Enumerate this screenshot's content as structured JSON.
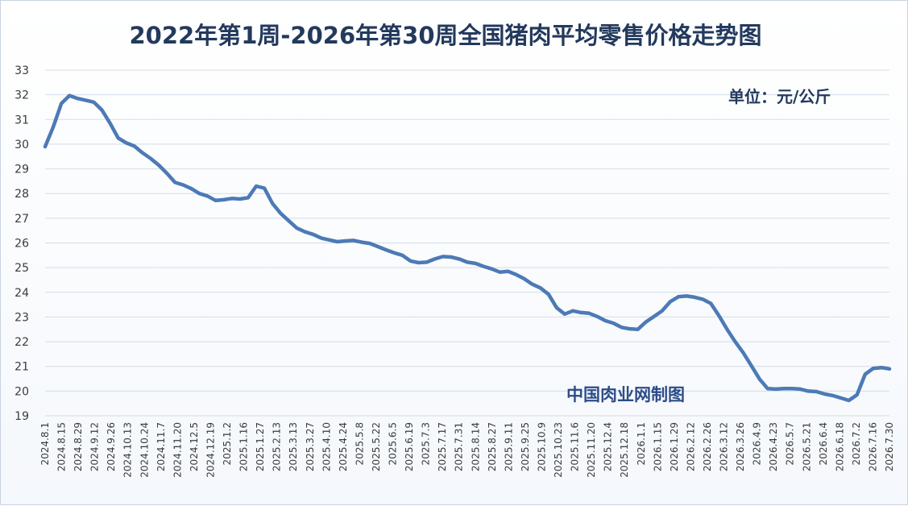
{
  "colors": {
    "line": "#4c7ab6",
    "grid": "#d5dde8",
    "title": "#23395d",
    "source": "#2c4c8a"
  },
  "chart_data": {
    "type": "line",
    "title": "2022年第1周-2026年第30周全国猪肉平均零售价格走势图",
    "unit": "单位：元/公斤",
    "source": "中国肉业网制图",
    "xlabel": "",
    "ylabel": "",
    "ylim": [
      19,
      33
    ],
    "yticks": [
      19,
      20,
      21,
      22,
      23,
      24,
      25,
      26,
      27,
      28,
      29,
      30,
      31,
      32,
      33
    ],
    "grid": true,
    "legend": "none",
    "x_tick_labels": [
      "2024.8.1",
      "2024.8.15",
      "2024.8.29",
      "2024.9.12",
      "2024.9.26",
      "2024.10.13",
      "2024.10.24",
      "2024.11.7",
      "2024.11.20",
      "2024.12.5",
      "2024.12.19",
      "2025.1.2",
      "2025.1.16",
      "2025.1.27",
      "2025.2.13",
      "2025.3.13",
      "2025.3.27",
      "2025.4.10",
      "2025.4.24",
      "2025.5.8",
      "2025.5.22",
      "2025.6.5",
      "2025.6.19",
      "2025.7.3",
      "2025.7.17",
      "2025.7.31",
      "2025.8.14",
      "2025.8.27",
      "2025.9.11",
      "2025.9.25",
      "2025.10.9",
      "2025.10.23",
      "2025.11.6",
      "2025.11.20",
      "2025.12.4",
      "2025.12.18",
      "2026.1.1",
      "2026.1.15",
      "2026.1.29",
      "2026.2.12",
      "2026.2.26",
      "2026.3.12",
      "2026.3.26",
      "2026.4.9",
      "2026.4.23",
      "2026.5.7",
      "2026.5.21",
      "2026.6.4",
      "2026.6.18",
      "2026.7.2",
      "2026.7.16",
      "2026.7.30"
    ],
    "values": [
      29.9,
      30.7,
      31.65,
      31.97,
      31.85,
      31.78,
      31.7,
      31.38,
      30.85,
      30.25,
      30.05,
      29.92,
      29.65,
      29.42,
      29.15,
      28.82,
      28.45,
      28.35,
      28.2,
      28.0,
      27.9,
      27.72,
      27.75,
      27.8,
      27.78,
      27.83,
      28.3,
      28.22,
      27.6,
      27.2,
      26.9,
      26.6,
      26.45,
      26.35,
      26.2,
      26.12,
      26.05,
      26.08,
      26.1,
      26.03,
      25.98,
      25.85,
      25.72,
      25.6,
      25.5,
      25.27,
      25.2,
      25.22,
      25.35,
      25.45,
      25.43,
      25.35,
      25.22,
      25.17,
      25.05,
      24.95,
      24.82,
      24.85,
      24.72,
      24.55,
      24.33,
      24.18,
      23.92,
      23.38,
      23.12,
      23.25,
      23.18,
      23.15,
      23.02,
      22.85,
      22.75,
      22.58,
      22.52,
      22.5,
      22.8,
      23.02,
      23.25,
      23.62,
      23.82,
      23.85,
      23.8,
      23.72,
      23.55,
      23.05,
      22.5,
      22.0,
      21.55,
      21.02,
      20.48,
      20.1,
      20.08,
      20.1,
      20.1,
      20.08,
      20.0,
      19.98,
      19.88,
      19.82,
      19.72,
      19.62,
      19.85,
      20.68,
      20.92,
      20.95,
      20.9
    ]
  }
}
